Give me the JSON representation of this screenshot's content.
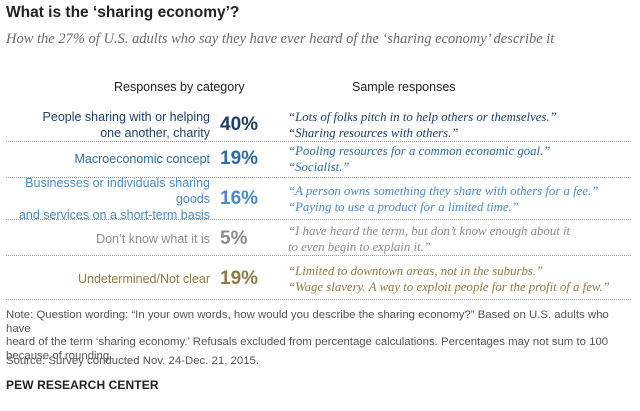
{
  "chart_data": {
    "type": "table",
    "title": "What is the ‘sharing economy’?",
    "subtitle": "How the 27% of U.S. adults who say they have ever heard of the ‘sharing economy’ describe it",
    "column_headers": [
      "Responses by category",
      "Sample responses"
    ],
    "rows": [
      {
        "category_lines": [
          "People sharing with or helping",
          "one another, charity"
        ],
        "value": 40,
        "label": "40%",
        "color": "#1f3f6b",
        "samples": [
          "“Lots of folks pitch in to help others or themselves.”",
          "“Sharing resources with others.”"
        ]
      },
      {
        "category_lines": [
          "Macroeconomic concept"
        ],
        "value": 19,
        "label": "19%",
        "color": "#2d6ea3",
        "samples": [
          "“Pooling resources for a common economic goal.”",
          "“Socialist.”"
        ]
      },
      {
        "category_lines": [
          "Businesses or individuals sharing goods",
          "and services on a short-term basis"
        ],
        "value": 16,
        "label": "16%",
        "color": "#4a8bc8",
        "samples": [
          "“A person owns something they share with others for a fee.”",
          "“Paying to use a product for a limited time.”"
        ]
      },
      {
        "category_lines": [
          "Don’t know what it is"
        ],
        "value": 5,
        "label": "5%",
        "color": "#8c8c8c",
        "samples": [
          "“I have heard the term, but don’t know enough about it",
          "to even begin to explain it.”"
        ]
      },
      {
        "category_lines": [
          "Undetermined/Not clear"
        ],
        "value": 19,
        "label": "19%",
        "color": "#8e7b45",
        "samples": [
          "“Limited to downtown areas, not in the suburbs.”",
          "“Wage slavery. A way to exploit people for the profit of a few.”"
        ]
      }
    ]
  },
  "footer": {
    "note_lines": [
      "Note: Question wording: “In your own words, how would you describe the sharing economy?” Based on U.S. adults who have",
      "heard of the term ‘sharing economy.’ Refusals excluded from percentage calculations. Percentages may not sum to 100",
      "because of rounding."
    ],
    "source": "Source: Survey conducted Nov. 24-Dec. 21, 2015.",
    "brand": "PEW RESEARCH CENTER"
  }
}
